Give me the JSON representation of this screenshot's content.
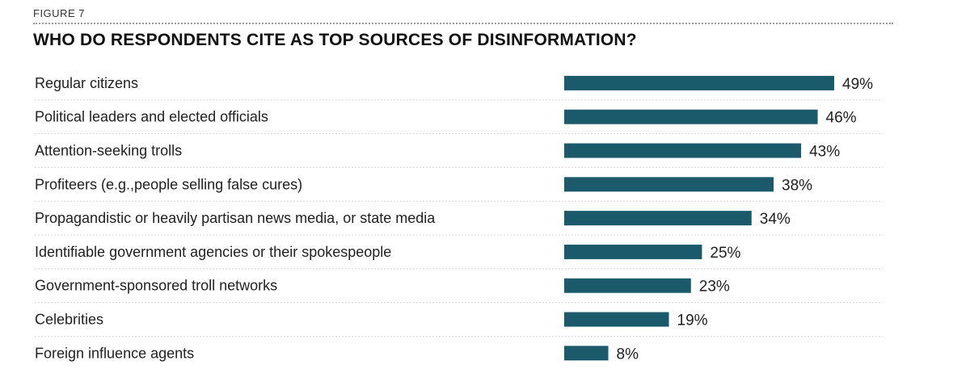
{
  "figure_label": "FIGURE 7",
  "chart_data": {
    "type": "bar",
    "orientation": "horizontal",
    "title": "WHO DO RESPONDENTS CITE AS TOP SOURCES OF DISINFORMATION?",
    "categories": [
      "Regular citizens",
      "Political leaders and elected officials",
      "Attention-seeking trolls",
      "Profiteers (e.g.,people selling false cures)",
      "Propagandistic or heavily partisan news media, or state media",
      "Identifiable government agencies or their spokespeople",
      "Government-sponsored troll networks",
      "Celebrities",
      "Foreign influence agents"
    ],
    "values": [
      49,
      46,
      43,
      38,
      34,
      25,
      23,
      19,
      8
    ],
    "value_labels": [
      "49%",
      "46%",
      "43%",
      "38%",
      "34%",
      "25%",
      "23%",
      "19%",
      "8%"
    ],
    "unit": "%",
    "xlim": [
      0,
      49
    ],
    "grid": false,
    "bar_color": "#1b5a6b",
    "separator_color": "#d9d9d9"
  }
}
